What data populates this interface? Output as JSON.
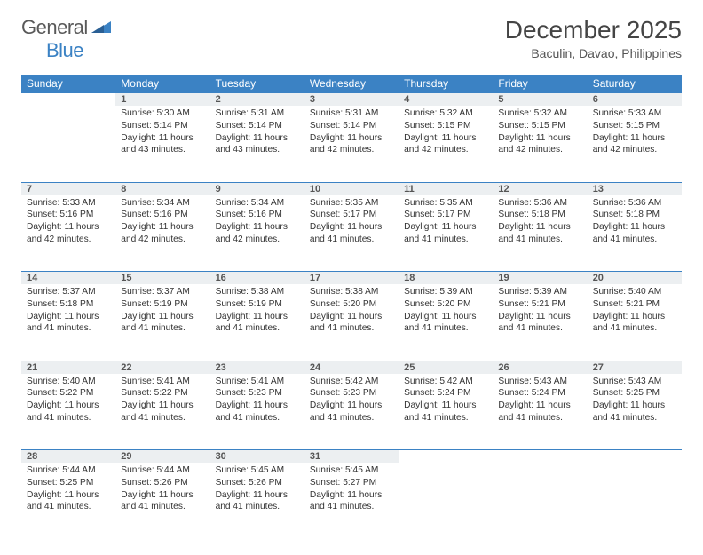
{
  "brand": {
    "part1": "General",
    "part2": "Blue"
  },
  "title": "December 2025",
  "location": "Baculin, Davao, Philippines",
  "colors": {
    "header_bg": "#3b82c4",
    "header_text": "#ffffff",
    "daynum_bg": "#eceff1",
    "border": "#3b82c4",
    "text": "#333333",
    "title_text": "#444444"
  },
  "weekdays": [
    "Sunday",
    "Monday",
    "Tuesday",
    "Wednesday",
    "Thursday",
    "Friday",
    "Saturday"
  ],
  "weeks": [
    {
      "nums": [
        "",
        "1",
        "2",
        "3",
        "4",
        "5",
        "6"
      ],
      "cells": [
        null,
        {
          "sr": "Sunrise: 5:30 AM",
          "ss": "Sunset: 5:14 PM",
          "dl": "Daylight: 11 hours and 43 minutes."
        },
        {
          "sr": "Sunrise: 5:31 AM",
          "ss": "Sunset: 5:14 PM",
          "dl": "Daylight: 11 hours and 43 minutes."
        },
        {
          "sr": "Sunrise: 5:31 AM",
          "ss": "Sunset: 5:14 PM",
          "dl": "Daylight: 11 hours and 42 minutes."
        },
        {
          "sr": "Sunrise: 5:32 AM",
          "ss": "Sunset: 5:15 PM",
          "dl": "Daylight: 11 hours and 42 minutes."
        },
        {
          "sr": "Sunrise: 5:32 AM",
          "ss": "Sunset: 5:15 PM",
          "dl": "Daylight: 11 hours and 42 minutes."
        },
        {
          "sr": "Sunrise: 5:33 AM",
          "ss": "Sunset: 5:15 PM",
          "dl": "Daylight: 11 hours and 42 minutes."
        }
      ]
    },
    {
      "nums": [
        "7",
        "8",
        "9",
        "10",
        "11",
        "12",
        "13"
      ],
      "cells": [
        {
          "sr": "Sunrise: 5:33 AM",
          "ss": "Sunset: 5:16 PM",
          "dl": "Daylight: 11 hours and 42 minutes."
        },
        {
          "sr": "Sunrise: 5:34 AM",
          "ss": "Sunset: 5:16 PM",
          "dl": "Daylight: 11 hours and 42 minutes."
        },
        {
          "sr": "Sunrise: 5:34 AM",
          "ss": "Sunset: 5:16 PM",
          "dl": "Daylight: 11 hours and 42 minutes."
        },
        {
          "sr": "Sunrise: 5:35 AM",
          "ss": "Sunset: 5:17 PM",
          "dl": "Daylight: 11 hours and 41 minutes."
        },
        {
          "sr": "Sunrise: 5:35 AM",
          "ss": "Sunset: 5:17 PM",
          "dl": "Daylight: 11 hours and 41 minutes."
        },
        {
          "sr": "Sunrise: 5:36 AM",
          "ss": "Sunset: 5:18 PM",
          "dl": "Daylight: 11 hours and 41 minutes."
        },
        {
          "sr": "Sunrise: 5:36 AM",
          "ss": "Sunset: 5:18 PM",
          "dl": "Daylight: 11 hours and 41 minutes."
        }
      ]
    },
    {
      "nums": [
        "14",
        "15",
        "16",
        "17",
        "18",
        "19",
        "20"
      ],
      "cells": [
        {
          "sr": "Sunrise: 5:37 AM",
          "ss": "Sunset: 5:18 PM",
          "dl": "Daylight: 11 hours and 41 minutes."
        },
        {
          "sr": "Sunrise: 5:37 AM",
          "ss": "Sunset: 5:19 PM",
          "dl": "Daylight: 11 hours and 41 minutes."
        },
        {
          "sr": "Sunrise: 5:38 AM",
          "ss": "Sunset: 5:19 PM",
          "dl": "Daylight: 11 hours and 41 minutes."
        },
        {
          "sr": "Sunrise: 5:38 AM",
          "ss": "Sunset: 5:20 PM",
          "dl": "Daylight: 11 hours and 41 minutes."
        },
        {
          "sr": "Sunrise: 5:39 AM",
          "ss": "Sunset: 5:20 PM",
          "dl": "Daylight: 11 hours and 41 minutes."
        },
        {
          "sr": "Sunrise: 5:39 AM",
          "ss": "Sunset: 5:21 PM",
          "dl": "Daylight: 11 hours and 41 minutes."
        },
        {
          "sr": "Sunrise: 5:40 AM",
          "ss": "Sunset: 5:21 PM",
          "dl": "Daylight: 11 hours and 41 minutes."
        }
      ]
    },
    {
      "nums": [
        "21",
        "22",
        "23",
        "24",
        "25",
        "26",
        "27"
      ],
      "cells": [
        {
          "sr": "Sunrise: 5:40 AM",
          "ss": "Sunset: 5:22 PM",
          "dl": "Daylight: 11 hours and 41 minutes."
        },
        {
          "sr": "Sunrise: 5:41 AM",
          "ss": "Sunset: 5:22 PM",
          "dl": "Daylight: 11 hours and 41 minutes."
        },
        {
          "sr": "Sunrise: 5:41 AM",
          "ss": "Sunset: 5:23 PM",
          "dl": "Daylight: 11 hours and 41 minutes."
        },
        {
          "sr": "Sunrise: 5:42 AM",
          "ss": "Sunset: 5:23 PM",
          "dl": "Daylight: 11 hours and 41 minutes."
        },
        {
          "sr": "Sunrise: 5:42 AM",
          "ss": "Sunset: 5:24 PM",
          "dl": "Daylight: 11 hours and 41 minutes."
        },
        {
          "sr": "Sunrise: 5:43 AM",
          "ss": "Sunset: 5:24 PM",
          "dl": "Daylight: 11 hours and 41 minutes."
        },
        {
          "sr": "Sunrise: 5:43 AM",
          "ss": "Sunset: 5:25 PM",
          "dl": "Daylight: 11 hours and 41 minutes."
        }
      ]
    },
    {
      "nums": [
        "28",
        "29",
        "30",
        "31",
        "",
        "",
        ""
      ],
      "cells": [
        {
          "sr": "Sunrise: 5:44 AM",
          "ss": "Sunset: 5:25 PM",
          "dl": "Daylight: 11 hours and 41 minutes."
        },
        {
          "sr": "Sunrise: 5:44 AM",
          "ss": "Sunset: 5:26 PM",
          "dl": "Daylight: 11 hours and 41 minutes."
        },
        {
          "sr": "Sunrise: 5:45 AM",
          "ss": "Sunset: 5:26 PM",
          "dl": "Daylight: 11 hours and 41 minutes."
        },
        {
          "sr": "Sunrise: 5:45 AM",
          "ss": "Sunset: 5:27 PM",
          "dl": "Daylight: 11 hours and 41 minutes."
        },
        null,
        null,
        null
      ]
    }
  ]
}
